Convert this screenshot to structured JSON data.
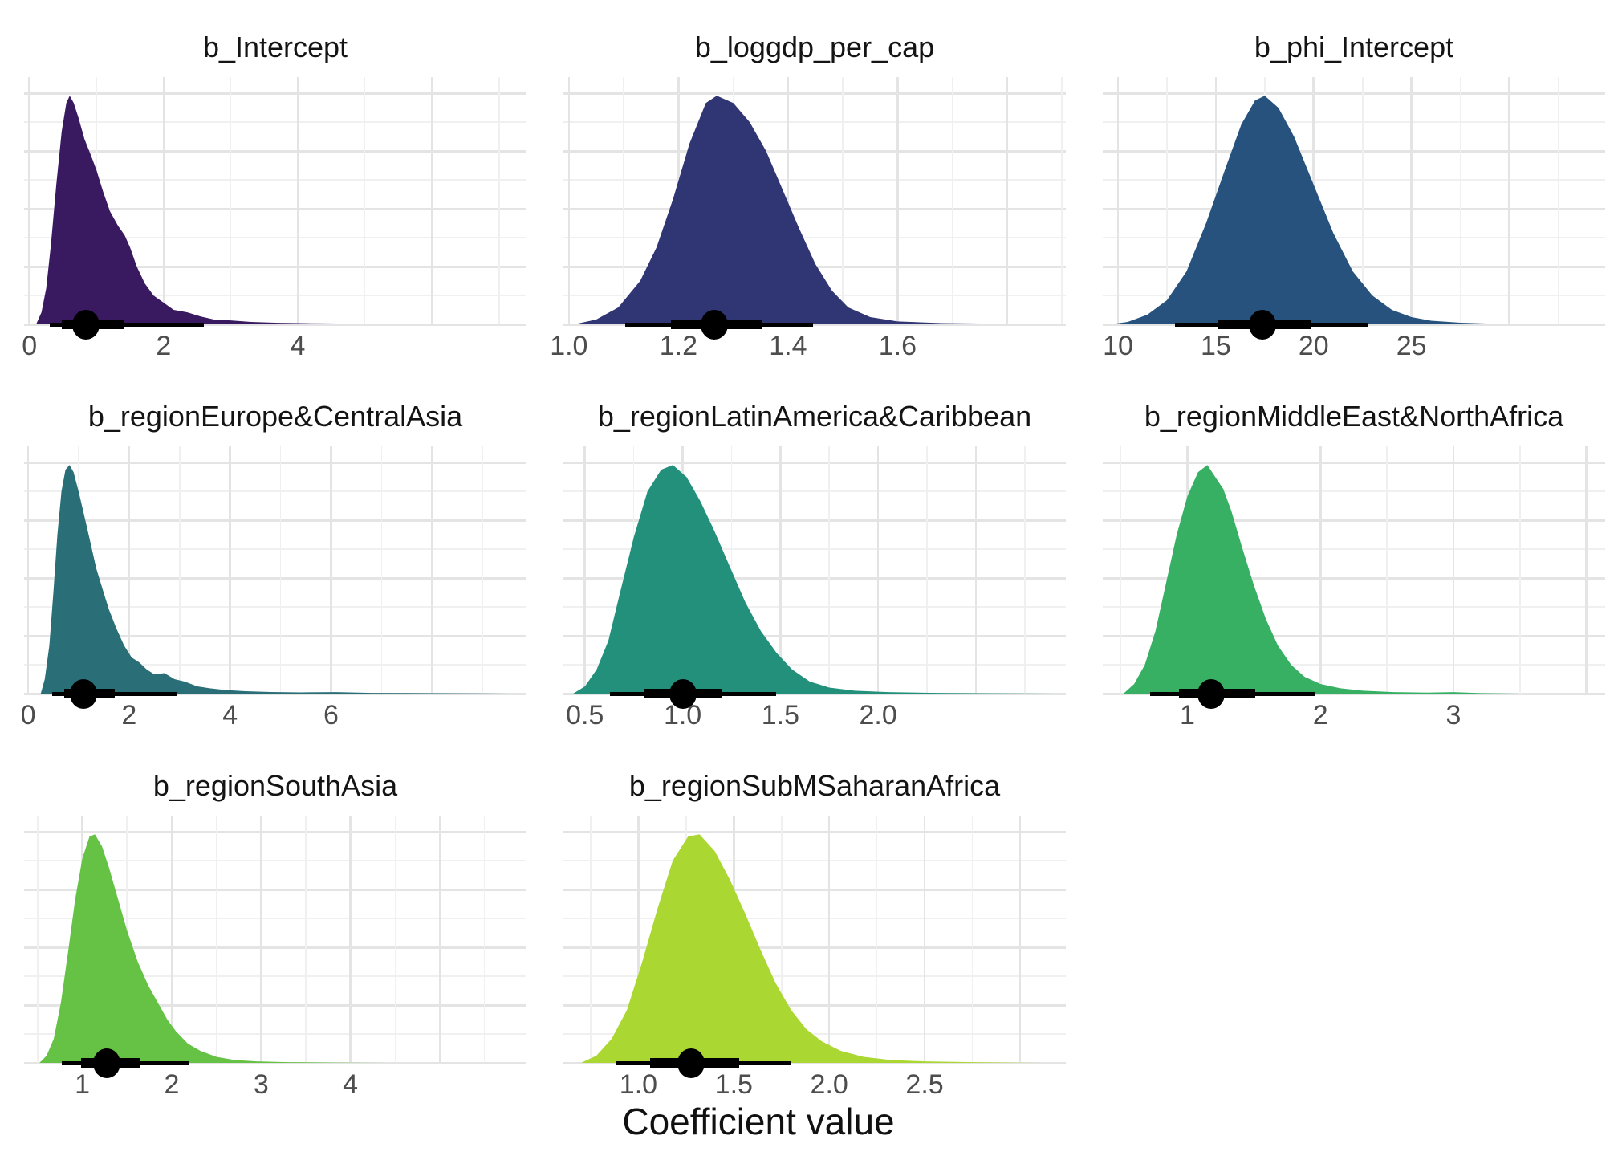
{
  "figure": {
    "background": "#FFFFFF",
    "grid_major_color": "#E4E4E4",
    "grid_minor_color": "#F0F0F0",
    "interval_color": "#000000",
    "tick_label_color": "#4D4D4D",
    "title_color": "#141414"
  },
  "chart_data": {
    "type": "area",
    "subtype": "faceted-density-halfeye",
    "xlabel": "Coefficient value",
    "legend": "none",
    "grid": "major+minor",
    "facets": [
      {
        "title": "b_Intercept",
        "fill": "#391A61",
        "xlim": [
          -0.08,
          7.41
        ],
        "ticks": [
          0,
          2,
          4
        ],
        "tick_labels": [
          "0",
          "2",
          "4"
        ],
        "point_estimate": 0.84,
        "interval_thick": [
          0.48,
          1.41
        ],
        "interval_thin": [
          0.3,
          2.6
        ],
        "density": [
          [
            0.1,
            0
          ],
          [
            0.18,
            0.05
          ],
          [
            0.25,
            0.15
          ],
          [
            0.32,
            0.33
          ],
          [
            0.4,
            0.58
          ],
          [
            0.48,
            0.8
          ],
          [
            0.55,
            0.92
          ],
          [
            0.6,
            0.95
          ],
          [
            0.66,
            0.92
          ],
          [
            0.73,
            0.86
          ],
          [
            0.82,
            0.77
          ],
          [
            0.92,
            0.7
          ],
          [
            1.0,
            0.64
          ],
          [
            1.1,
            0.55
          ],
          [
            1.2,
            0.47
          ],
          [
            1.32,
            0.41
          ],
          [
            1.42,
            0.37
          ],
          [
            1.5,
            0.32
          ],
          [
            1.6,
            0.24
          ],
          [
            1.72,
            0.17
          ],
          [
            1.85,
            0.12
          ],
          [
            2.0,
            0.09
          ],
          [
            2.15,
            0.06
          ],
          [
            2.35,
            0.05
          ],
          [
            2.55,
            0.033
          ],
          [
            2.75,
            0.02
          ],
          [
            3.0,
            0.016
          ],
          [
            3.3,
            0.01
          ],
          [
            3.7,
            0.006
          ],
          [
            4.2,
            0.004
          ],
          [
            4.8,
            0.003
          ],
          [
            5.5,
            0.002
          ],
          [
            6.3,
            0.0015
          ],
          [
            7.0,
            0.001
          ],
          [
            7.35,
            0
          ]
        ]
      },
      {
        "title": "b_loggdp_per_cap",
        "fill": "#303573",
        "xlim": [
          0.99,
          1.907
        ],
        "ticks": [
          1.0,
          1.2,
          1.4,
          1.6
        ],
        "tick_labels": [
          "1.0",
          "1.2",
          "1.4",
          "1.6"
        ],
        "point_estimate": 1.266,
        "interval_thick": [
          1.186,
          1.352
        ],
        "interval_thin": [
          1.103,
          1.446
        ],
        "density": [
          [
            1.01,
            0
          ],
          [
            1.05,
            0.02
          ],
          [
            1.09,
            0.07
          ],
          [
            1.13,
            0.18
          ],
          [
            1.16,
            0.32
          ],
          [
            1.19,
            0.52
          ],
          [
            1.22,
            0.75
          ],
          [
            1.25,
            0.92
          ],
          [
            1.27,
            0.95
          ],
          [
            1.3,
            0.92
          ],
          [
            1.33,
            0.84
          ],
          [
            1.36,
            0.72
          ],
          [
            1.39,
            0.56
          ],
          [
            1.42,
            0.4
          ],
          [
            1.45,
            0.25
          ],
          [
            1.48,
            0.14
          ],
          [
            1.51,
            0.07
          ],
          [
            1.55,
            0.03
          ],
          [
            1.6,
            0.012
          ],
          [
            1.68,
            0.005
          ],
          [
            1.8,
            0.002
          ],
          [
            1.9,
            0
          ]
        ]
      },
      {
        "title": "b_phi_Intercept",
        "fill": "#26527D",
        "xlim": [
          9.22,
          34.9
        ],
        "ticks": [
          10,
          15,
          20,
          25
        ],
        "tick_labels": [
          "10",
          "15",
          "20",
          "25"
        ],
        "point_estimate": 17.4,
        "interval_thick": [
          15.1,
          19.9
        ],
        "interval_thin": [
          12.9,
          22.8
        ],
        "density": [
          [
            9.6,
            0
          ],
          [
            10.5,
            0.01
          ],
          [
            11.5,
            0.04
          ],
          [
            12.5,
            0.1
          ],
          [
            13.5,
            0.22
          ],
          [
            14.5,
            0.42
          ],
          [
            15.5,
            0.65
          ],
          [
            16.3,
            0.83
          ],
          [
            17.0,
            0.93
          ],
          [
            17.5,
            0.95
          ],
          [
            18.2,
            0.9
          ],
          [
            19.0,
            0.78
          ],
          [
            20.0,
            0.58
          ],
          [
            21.0,
            0.38
          ],
          [
            22.0,
            0.22
          ],
          [
            23.0,
            0.12
          ],
          [
            24.0,
            0.06
          ],
          [
            25.0,
            0.03
          ],
          [
            26.0,
            0.015
          ],
          [
            27.5,
            0.007
          ],
          [
            29.0,
            0.003
          ],
          [
            31.0,
            0.0015
          ],
          [
            33.5,
            0
          ]
        ]
      },
      {
        "title": "b_regionEurope&CentralAsia",
        "fill": "#2A6E78",
        "xlim": [
          -0.08,
          9.87
        ],
        "ticks": [
          0,
          2,
          4,
          6
        ],
        "tick_labels": [
          "0",
          "2",
          "4",
          "6"
        ],
        "point_estimate": 1.1,
        "interval_thick": [
          0.71,
          1.72
        ],
        "interval_thin": [
          0.47,
          2.94
        ],
        "density": [
          [
            0.25,
            0
          ],
          [
            0.33,
            0.06
          ],
          [
            0.42,
            0.2
          ],
          [
            0.5,
            0.42
          ],
          [
            0.58,
            0.66
          ],
          [
            0.66,
            0.84
          ],
          [
            0.74,
            0.93
          ],
          [
            0.82,
            0.95
          ],
          [
            0.9,
            0.92
          ],
          [
            1.0,
            0.84
          ],
          [
            1.1,
            0.75
          ],
          [
            1.22,
            0.64
          ],
          [
            1.35,
            0.52
          ],
          [
            1.48,
            0.43
          ],
          [
            1.6,
            0.35
          ],
          [
            1.75,
            0.27
          ],
          [
            1.9,
            0.2
          ],
          [
            2.05,
            0.15
          ],
          [
            2.2,
            0.13
          ],
          [
            2.35,
            0.1
          ],
          [
            2.5,
            0.08
          ],
          [
            2.7,
            0.085
          ],
          [
            2.9,
            0.06
          ],
          [
            3.1,
            0.05
          ],
          [
            3.35,
            0.03
          ],
          [
            3.6,
            0.022
          ],
          [
            3.9,
            0.015
          ],
          [
            4.3,
            0.01
          ],
          [
            4.8,
            0.007
          ],
          [
            5.4,
            0.005
          ],
          [
            6.1,
            0.006
          ],
          [
            6.8,
            0.003
          ],
          [
            7.8,
            0.002
          ],
          [
            9.0,
            0.001
          ],
          [
            9.6,
            0
          ]
        ]
      },
      {
        "title": "b_regionLatinAmerica&Caribbean",
        "fill": "#23907B",
        "xlim": [
          0.39,
          2.96
        ],
        "ticks": [
          0.5,
          1.0,
          1.5,
          2.0
        ],
        "tick_labels": [
          "0.5",
          "1.0",
          "1.5",
          "2.0"
        ],
        "point_estimate": 1.0,
        "interval_thick": [
          0.8,
          1.2
        ],
        "interval_thin": [
          0.63,
          1.48
        ],
        "density": [
          [
            0.44,
            0
          ],
          [
            0.5,
            0.03
          ],
          [
            0.56,
            0.1
          ],
          [
            0.62,
            0.22
          ],
          [
            0.68,
            0.42
          ],
          [
            0.75,
            0.65
          ],
          [
            0.82,
            0.84
          ],
          [
            0.89,
            0.93
          ],
          [
            0.95,
            0.95
          ],
          [
            1.02,
            0.9
          ],
          [
            1.09,
            0.8
          ],
          [
            1.16,
            0.68
          ],
          [
            1.24,
            0.53
          ],
          [
            1.32,
            0.38
          ],
          [
            1.4,
            0.26
          ],
          [
            1.48,
            0.17
          ],
          [
            1.56,
            0.1
          ],
          [
            1.65,
            0.05
          ],
          [
            1.75,
            0.025
          ],
          [
            1.88,
            0.012
          ],
          [
            2.05,
            0.006
          ],
          [
            2.3,
            0.003
          ],
          [
            2.6,
            0.0015
          ],
          [
            2.9,
            0
          ]
        ]
      },
      {
        "title": "b_regionMiddleEast&NorthAfrica",
        "fill": "#37B064",
        "xlim": [
          0.364,
          4.14
        ],
        "ticks": [
          1,
          2,
          3
        ],
        "tick_labels": [
          "1",
          "2",
          "3"
        ],
        "point_estimate": 1.18,
        "interval_thick": [
          0.94,
          1.51
        ],
        "interval_thin": [
          0.72,
          1.96
        ],
        "density": [
          [
            0.52,
            0
          ],
          [
            0.6,
            0.04
          ],
          [
            0.68,
            0.12
          ],
          [
            0.76,
            0.26
          ],
          [
            0.84,
            0.46
          ],
          [
            0.92,
            0.66
          ],
          [
            1.0,
            0.82
          ],
          [
            1.08,
            0.92
          ],
          [
            1.15,
            0.95
          ],
          [
            1.21,
            0.9
          ],
          [
            1.27,
            0.85
          ],
          [
            1.33,
            0.76
          ],
          [
            1.41,
            0.61
          ],
          [
            1.5,
            0.45
          ],
          [
            1.59,
            0.31
          ],
          [
            1.68,
            0.2
          ],
          [
            1.78,
            0.12
          ],
          [
            1.88,
            0.07
          ],
          [
            2.0,
            0.04
          ],
          [
            2.15,
            0.022
          ],
          [
            2.32,
            0.012
          ],
          [
            2.55,
            0.006
          ],
          [
            2.8,
            0.004
          ],
          [
            3.0,
            0.006
          ],
          [
            3.2,
            0.002
          ],
          [
            3.5,
            0
          ]
        ]
      },
      {
        "title": "b_regionSouthAsia",
        "fill": "#65C244",
        "xlim": [
          0.348,
          5.97
        ],
        "ticks": [
          1,
          2,
          3,
          4
        ],
        "tick_labels": [
          "1",
          "2",
          "3",
          "4"
        ],
        "point_estimate": 1.27,
        "interval_thick": [
          0.99,
          1.64
        ],
        "interval_thin": [
          0.77,
          2.19
        ],
        "density": [
          [
            0.52,
            0
          ],
          [
            0.6,
            0.03
          ],
          [
            0.68,
            0.1
          ],
          [
            0.76,
            0.25
          ],
          [
            0.84,
            0.46
          ],
          [
            0.92,
            0.68
          ],
          [
            1.0,
            0.85
          ],
          [
            1.08,
            0.94
          ],
          [
            1.14,
            0.95
          ],
          [
            1.22,
            0.9
          ],
          [
            1.3,
            0.81
          ],
          [
            1.4,
            0.68
          ],
          [
            1.5,
            0.55
          ],
          [
            1.62,
            0.42
          ],
          [
            1.74,
            0.32
          ],
          [
            1.86,
            0.24
          ],
          [
            1.95,
            0.18
          ],
          [
            2.05,
            0.13
          ],
          [
            2.18,
            0.08
          ],
          [
            2.32,
            0.05
          ],
          [
            2.5,
            0.025
          ],
          [
            2.7,
            0.012
          ],
          [
            2.95,
            0.006
          ],
          [
            3.3,
            0.003
          ],
          [
            3.8,
            0.0015
          ],
          [
            4.4,
            0
          ]
        ]
      },
      {
        "title": "b_regionSubMSaharanAfrica",
        "fill": "#AAD732",
        "xlim": [
          0.607,
          3.24
        ],
        "ticks": [
          1.0,
          1.5,
          2.0,
          2.5
        ],
        "tick_labels": [
          "1.0",
          "1.5",
          "2.0",
          "2.5"
        ],
        "point_estimate": 1.275,
        "interval_thick": [
          1.06,
          1.53
        ],
        "interval_thin": [
          0.88,
          1.8
        ],
        "density": [
          [
            0.7,
            0
          ],
          [
            0.78,
            0.03
          ],
          [
            0.86,
            0.1
          ],
          [
            0.94,
            0.22
          ],
          [
            1.02,
            0.42
          ],
          [
            1.1,
            0.64
          ],
          [
            1.18,
            0.84
          ],
          [
            1.26,
            0.94
          ],
          [
            1.32,
            0.95
          ],
          [
            1.4,
            0.88
          ],
          [
            1.48,
            0.76
          ],
          [
            1.56,
            0.62
          ],
          [
            1.64,
            0.47
          ],
          [
            1.72,
            0.33
          ],
          [
            1.8,
            0.22
          ],
          [
            1.88,
            0.14
          ],
          [
            1.96,
            0.09
          ],
          [
            2.06,
            0.05
          ],
          [
            2.18,
            0.025
          ],
          [
            2.32,
            0.012
          ],
          [
            2.5,
            0.006
          ],
          [
            2.75,
            0.003
          ],
          [
            3.1,
            0
          ]
        ]
      }
    ]
  }
}
